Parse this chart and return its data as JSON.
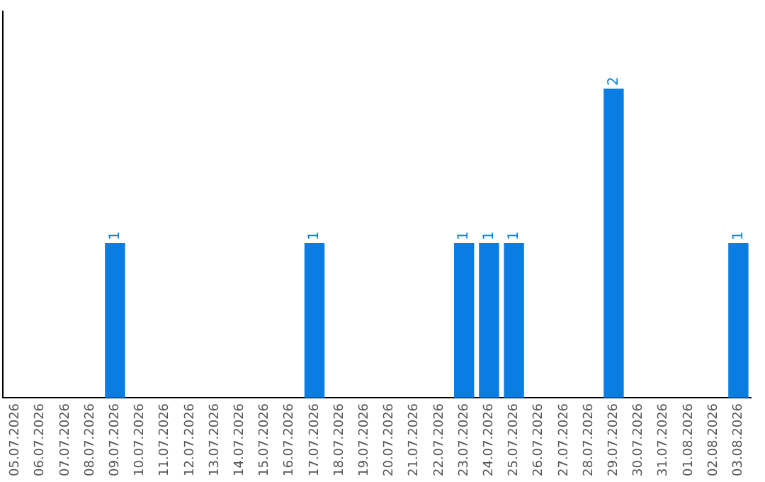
{
  "chart_data": {
    "type": "bar",
    "categories": [
      "05.07.2026",
      "06.07.2026",
      "07.07.2026",
      "08.07.2026",
      "09.07.2026",
      "10.07.2026",
      "11.07.2026",
      "12.07.2026",
      "13.07.2026",
      "14.07.2026",
      "15.07.2026",
      "16.07.2026",
      "17.07.2026",
      "18.07.2026",
      "19.07.2026",
      "20.07.2026",
      "21.07.2026",
      "22.07.2026",
      "23.07.2026",
      "24.07.2026",
      "25.07.2026",
      "26.07.2026",
      "27.07.2026",
      "28.07.2026",
      "29.07.2026",
      "30.07.2026",
      "31.07.2026",
      "01.08.2026",
      "02.08.2026",
      "03.08.2026"
    ],
    "values": [
      0,
      0,
      0,
      0,
      1,
      0,
      0,
      0,
      0,
      0,
      0,
      0,
      1,
      0,
      0,
      0,
      0,
      0,
      1,
      1,
      1,
      0,
      0,
      0,
      2,
      0,
      0,
      0,
      0,
      1
    ],
    "color": "#0a7de3",
    "value_labels": [
      null,
      null,
      null,
      null,
      "1",
      null,
      null,
      null,
      null,
      null,
      null,
      null,
      "1",
      null,
      null,
      null,
      null,
      null,
      "1",
      "1",
      "1",
      null,
      null,
      null,
      "2",
      null,
      null,
      null,
      null,
      "1"
    ],
    "grid": false,
    "legend": false,
    "tick_labels": "x"
  }
}
